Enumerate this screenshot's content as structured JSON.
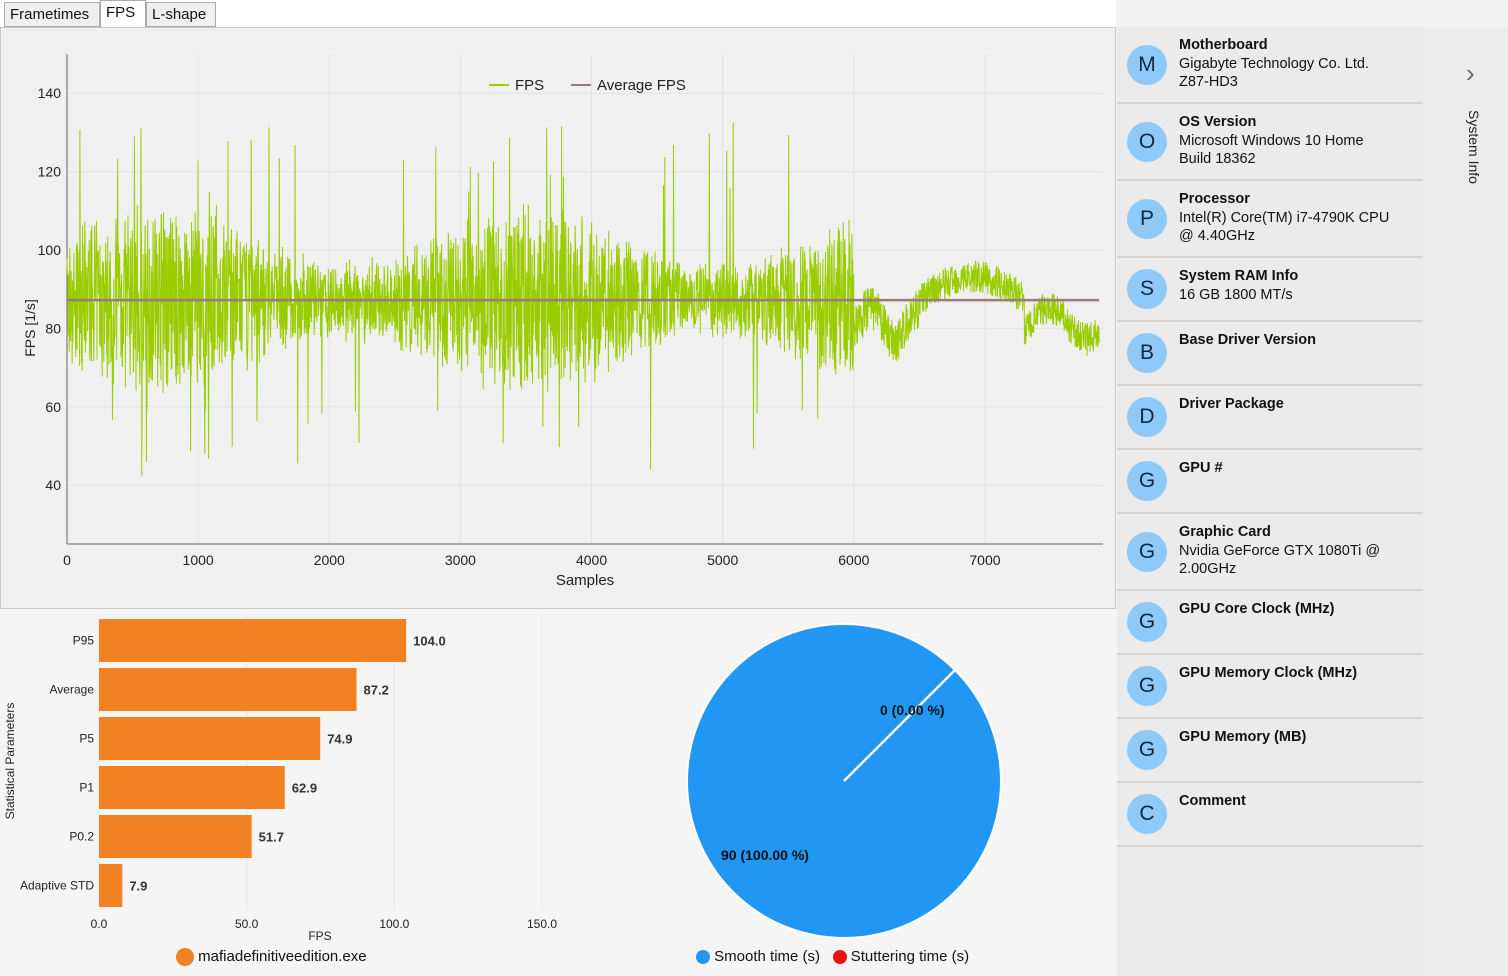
{
  "tabs": [
    "Frametimes",
    "FPS",
    "L-shape"
  ],
  "active_tab": "FPS",
  "fps_chart": {
    "chart_data": {
      "type": "line",
      "xlabel": "Samples",
      "ylabel": "FPS [1/s]",
      "xlim": [
        0,
        7900
      ],
      "ylim": [
        25,
        150
      ],
      "x_ticks": [
        0,
        1000,
        2000,
        3000,
        4000,
        5000,
        6000,
        7000
      ],
      "y_ticks": [
        40,
        60,
        80,
        100,
        120,
        140
      ],
      "series": [
        {
          "name": "FPS",
          "color": "#9acd00",
          "approx_mean": 87.2,
          "approx_min": 40,
          "approx_max": 133
        },
        {
          "name": "Average FPS",
          "color": "#9a7b7b",
          "value": 87.2
        }
      ],
      "grid": true,
      "legend": "top-center"
    }
  },
  "bar_chart": {
    "chart_data": {
      "type": "bar",
      "orientation": "horizontal",
      "categories": [
        "P95",
        "Average",
        "P5",
        "P1",
        "P0.2",
        "Adaptive STD"
      ],
      "values": [
        104.0,
        87.2,
        74.9,
        62.9,
        51.7,
        7.9
      ],
      "value_labels": [
        "104.0",
        "87.2",
        "74.9",
        "62.9",
        "51.7",
        "7.9"
      ],
      "xlabel": "FPS",
      "ylabel": "Statistical Parameters",
      "xlim": [
        0,
        150
      ],
      "x_ticks": [
        "0.0",
        "50.0",
        "100.0",
        "150.0"
      ],
      "series": [
        {
          "name": "mafiadefinitiveedition.exe",
          "color": "#f28123"
        }
      ]
    }
  },
  "pie_chart": {
    "chart_data": {
      "type": "pie",
      "slices": [
        {
          "name": "Smooth time (s)",
          "value": 90,
          "label": "90 (100.00 %)",
          "color": "#2196f3"
        },
        {
          "name": "Stuttering time (s)",
          "value": 0,
          "label": "0 (0.00 %)",
          "color": "#e81010"
        }
      ],
      "legend": "bottom"
    }
  },
  "system_info": {
    "panel_title": "System Info",
    "items": [
      {
        "letter": "M",
        "title": "Motherboard",
        "value": [
          "Gigabyte Technology Co. Ltd.",
          "Z87-HD3"
        ]
      },
      {
        "letter": "O",
        "title": "OS Version",
        "value": [
          "Microsoft Windows 10 Home",
          "Build 18362"
        ]
      },
      {
        "letter": "P",
        "title": "Processor",
        "value": [
          "Intel(R) Core(TM) i7-4790K CPU",
          "@ 4.40GHz"
        ]
      },
      {
        "letter": "S",
        "title": "System RAM Info",
        "value": [
          "16 GB 1800 MT/s"
        ]
      },
      {
        "letter": "B",
        "title": "Base Driver Version",
        "value": []
      },
      {
        "letter": "D",
        "title": "Driver Package",
        "value": []
      },
      {
        "letter": "G",
        "title": "GPU #",
        "value": []
      },
      {
        "letter": "G",
        "title": "Graphic Card",
        "value": [
          "Nvidia GeForce GTX 1080Ti @",
          "2.00GHz"
        ]
      },
      {
        "letter": "G",
        "title": "GPU Core Clock (MHz)",
        "value": []
      },
      {
        "letter": "G",
        "title": "GPU Memory Clock (MHz)",
        "value": []
      },
      {
        "letter": "G",
        "title": "GPU Memory (MB)",
        "value": []
      },
      {
        "letter": "C",
        "title": "Comment",
        "value": []
      }
    ]
  },
  "icons": {
    "expand": "chevron-right-icon",
    "scroll_up": "arrow-up-icon",
    "scroll_down": "arrow-down-icon"
  }
}
